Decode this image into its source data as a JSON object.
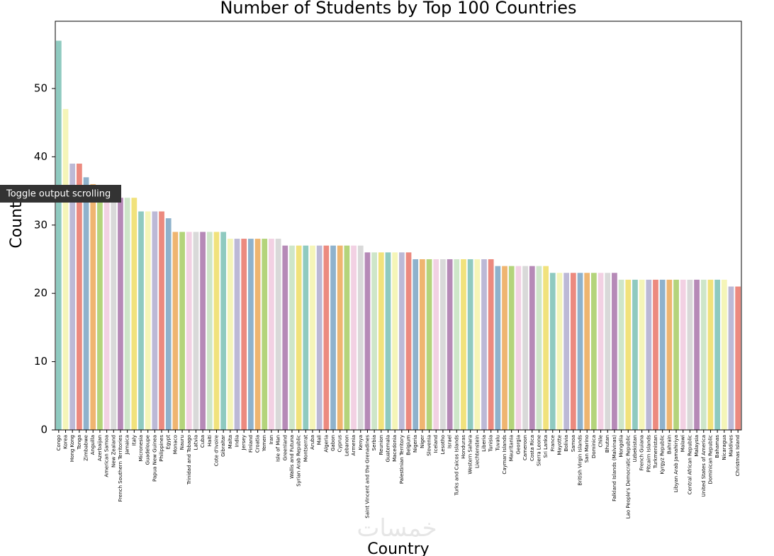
{
  "chart_data": {
    "type": "bar",
    "title": "Number of Students by Top 100 Countries",
    "x_label": "Country",
    "y_label": "Count",
    "categories": [
      "Congo",
      "Korea",
      "Hong Kong",
      "Tonga",
      "Zimbabwe",
      "Anguilla",
      "Azerbaijan",
      "American Samoa",
      "New Zealand",
      "French Southern Territories",
      "Jamaica",
      "Italy",
      "Micronesia",
      "Guadeloupe",
      "Papua New Guinea",
      "Philippines",
      "Egypt",
      "Monaco",
      "Nauru",
      "Trinidad and Tobago",
      "Latvia",
      "Cuba",
      "Haiti",
      "Cote d'Ivoire",
      "Gibraltar",
      "Malta",
      "India",
      "Jersey",
      "Finland",
      "Croatia",
      "Yemen",
      "Iran",
      "Isle of Man",
      "Greenland",
      "Wallis and Futuna",
      "Syrian Arab Republic",
      "Montserrat",
      "Aruba",
      "Mali",
      "Algeria",
      "Gabon",
      "Cyprus",
      "Lebanon",
      "Armenia",
      "Kenya",
      "Saint Vincent and the Grenadines",
      "Serbia",
      "Reunion",
      "Guatemala",
      "Macedonia",
      "Palestinian Territory",
      "Belgium",
      "Nigeria",
      "Niger",
      "Slovenia",
      "Iceland",
      "Lesotho",
      "Israel",
      "Turks and Caicos Islands",
      "Honduras",
      "Western Sahara",
      "Liechtenstein",
      "Liberia",
      "Tunisia",
      "Tuvalu",
      "Cayman Islands",
      "Mauritania",
      "Georgia",
      "Cameroon",
      "Costa Rica",
      "Sierra Leone",
      "Sri Lanka",
      "France",
      "Mayotte",
      "Bolivia",
      "Samoa",
      "British Virgin Islands",
      "San Marino",
      "Dominica",
      "Chile",
      "Bhutan",
      "Falkland Islands (Malvinas)",
      "Mongolia",
      "Lao People's Democratic Republic",
      "Uzbekistan",
      "French Guiana",
      "Pitcairn Islands",
      "Turkmenistan",
      "Kyrgyz Republic",
      "Bahrain",
      "Libyan Arab Jamahiriya",
      "Malawi",
      "Central African Republic",
      "Malaysia",
      "United States of America",
      "Dominican Republic",
      "Bahamas",
      "Nicaragua",
      "Maldives",
      "Christmas Island"
    ],
    "values": [
      57,
      47,
      39,
      39,
      37,
      36,
      35,
      35,
      34,
      34,
      34,
      34,
      32,
      32,
      32,
      32,
      31,
      29,
      29,
      29,
      29,
      29,
      29,
      29,
      29,
      28,
      28,
      28,
      28,
      28,
      28,
      28,
      28,
      27,
      27,
      27,
      27,
      27,
      27,
      27,
      27,
      27,
      27,
      27,
      27,
      26,
      26,
      26,
      26,
      26,
      26,
      26,
      25,
      25,
      25,
      25,
      25,
      25,
      25,
      25,
      25,
      25,
      25,
      25,
      24,
      24,
      24,
      24,
      24,
      24,
      24,
      24,
      23,
      23,
      23,
      23,
      23,
      23,
      23,
      23,
      23,
      23,
      22,
      22,
      22,
      22,
      22,
      22,
      22,
      22,
      22,
      22,
      22,
      22,
      22,
      22,
      22,
      22,
      21,
      21
    ],
    "palette": [
      "#8fcac0",
      "#f5f5b8",
      "#bcb9d6",
      "#ec8a7f",
      "#8fb2cc",
      "#efb570",
      "#b4d47b",
      "#f2d1e3",
      "#d9d9d9",
      "#b68ab7",
      "#cee6c9",
      "#f1e27c"
    ],
    "ylim": [
      0,
      59.85
    ],
    "yticks": [
      0,
      10,
      20,
      30,
      40,
      50
    ]
  },
  "tooltip": "Toggle output scrolling",
  "watermark": "خمسات"
}
